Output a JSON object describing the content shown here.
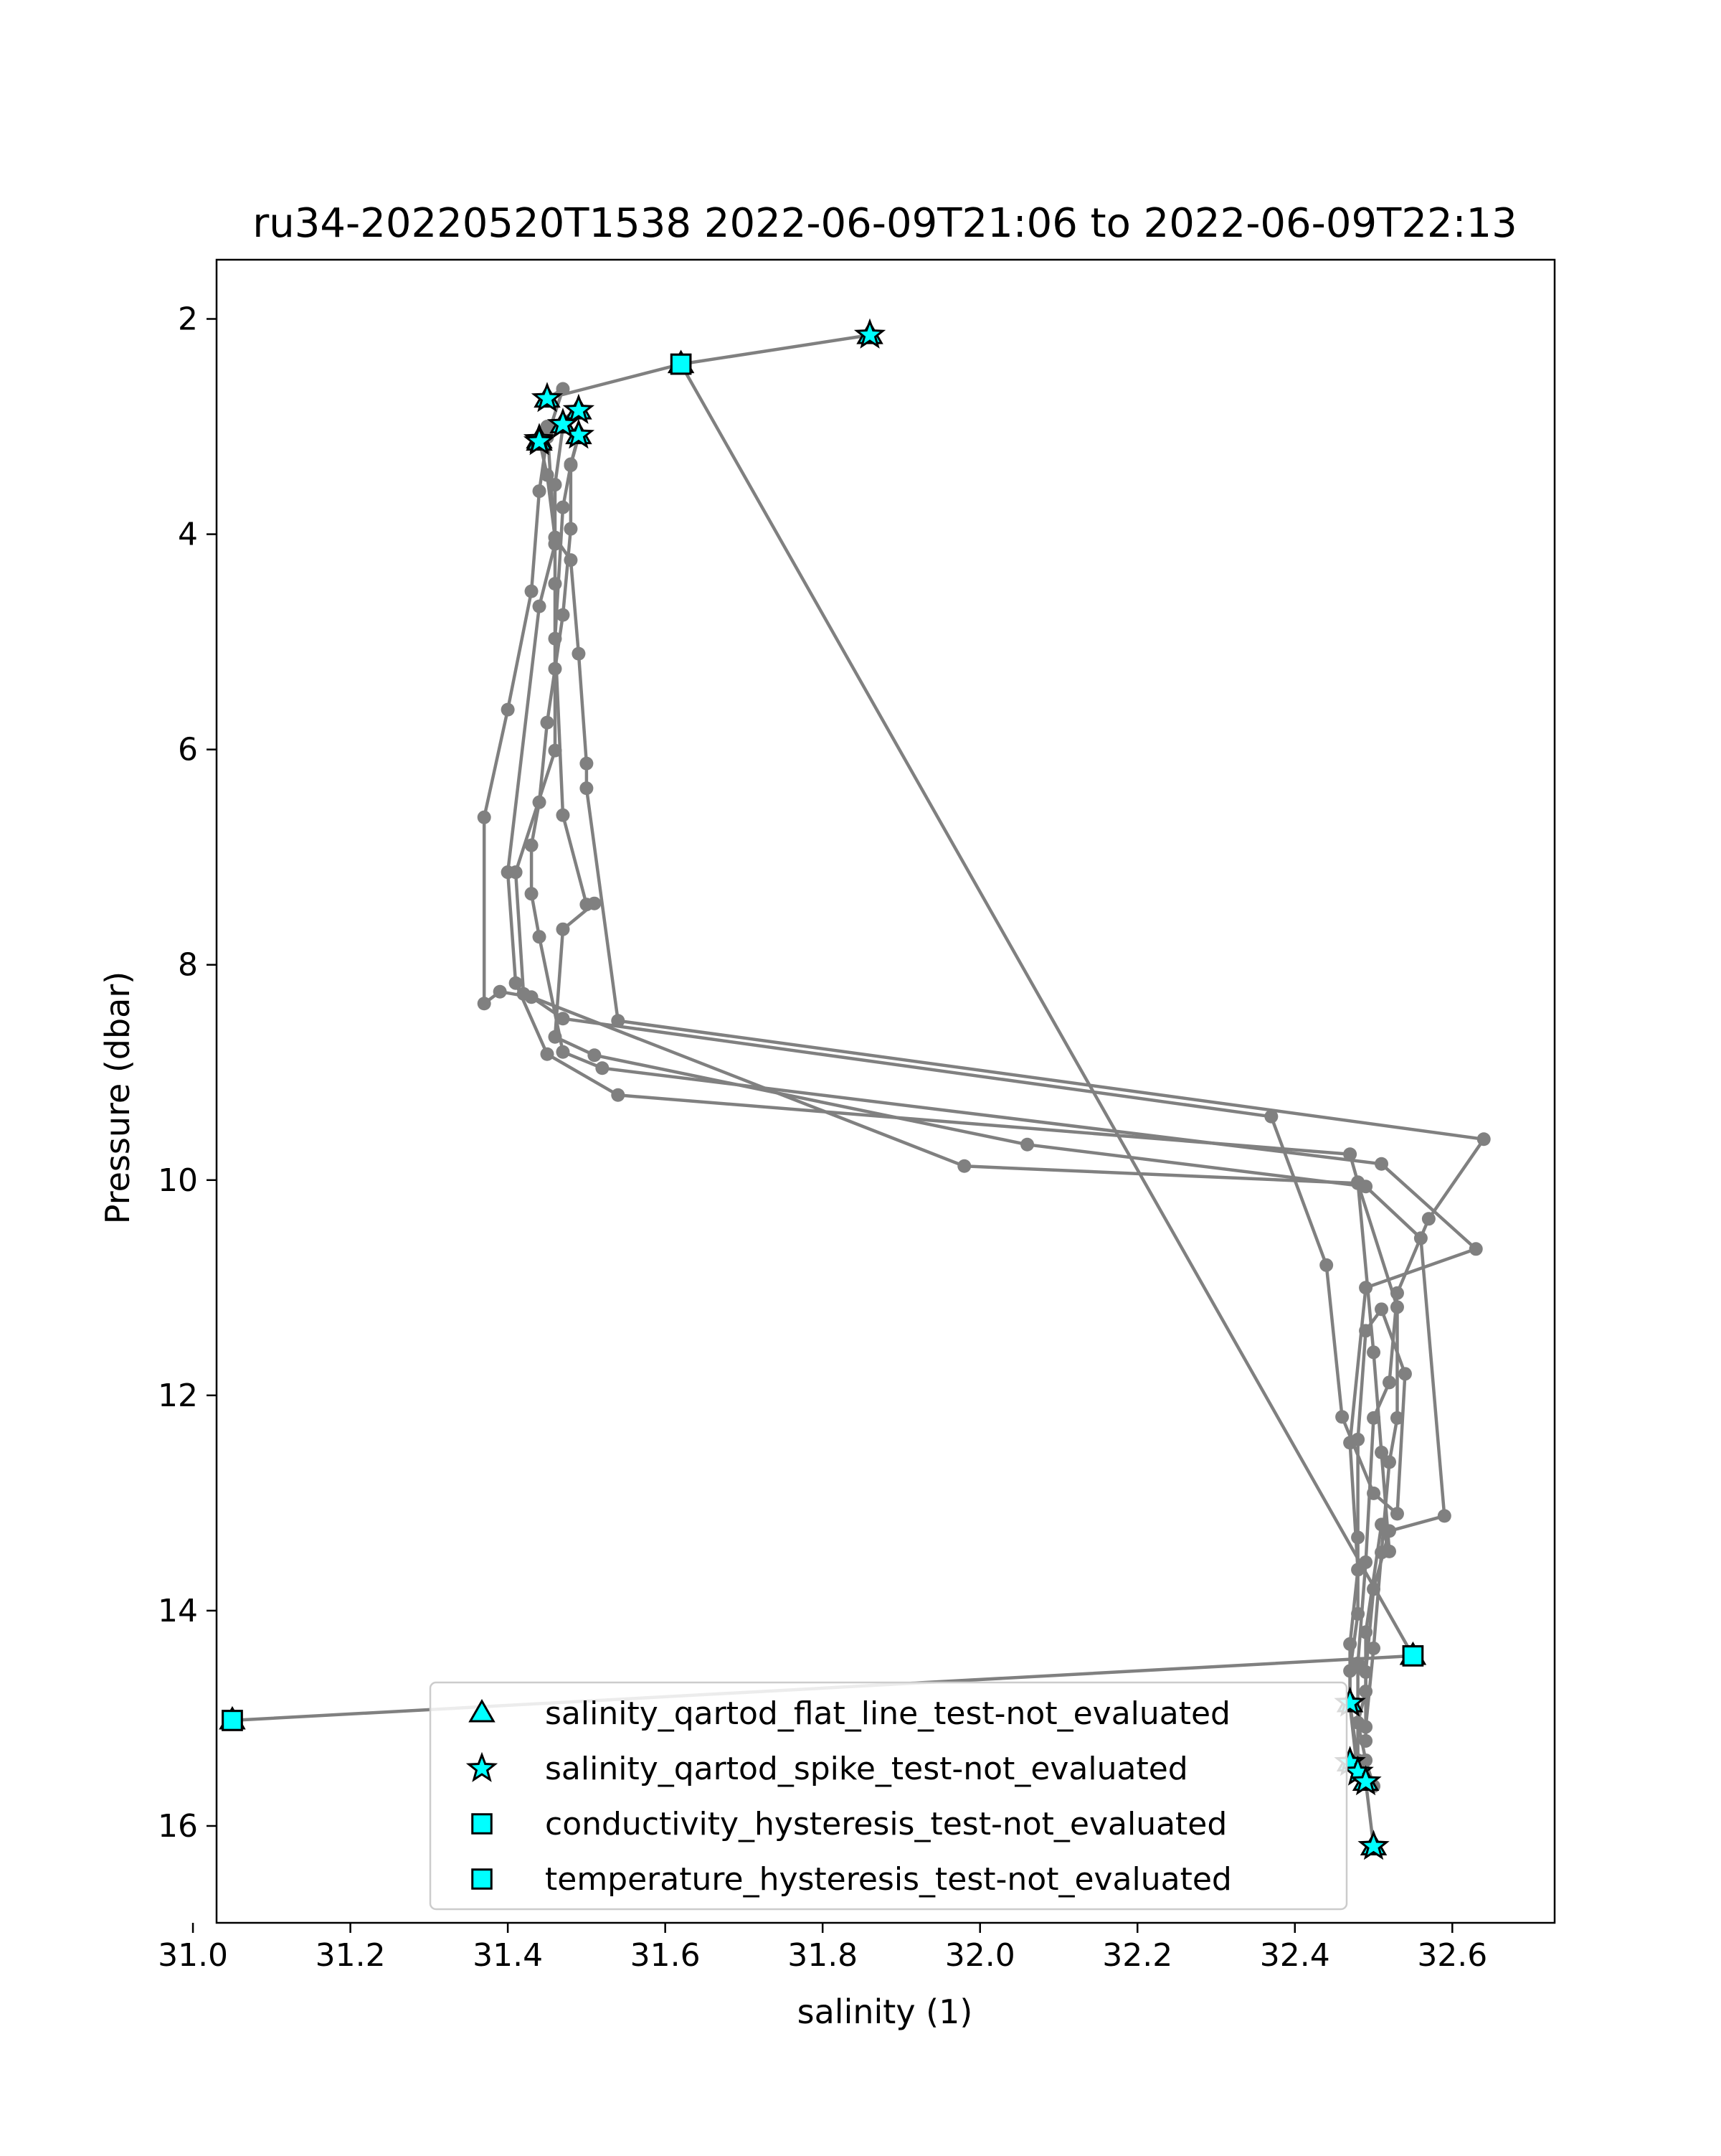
{
  "chart_data": {
    "type": "scatter",
    "title": "ru34-20220520T1538 2022-06-09T21:06 to 2022-06-09T22:13",
    "xlabel": "salinity (1)",
    "ylabel": "Pressure (dbar)",
    "xlim": [
      31.03,
      32.73
    ],
    "ylim": [
      16.9,
      1.45
    ],
    "y_inverted": true,
    "x_ticks": [
      "31.0",
      "31.2",
      "31.4",
      "31.6",
      "31.8",
      "32.0",
      "32.2",
      "32.4",
      "32.6"
    ],
    "y_ticks": [
      "2",
      "4",
      "6",
      "8",
      "10",
      "12",
      "14",
      "16"
    ],
    "grid": false,
    "legend_position": "lower-center",
    "colors": {
      "line": "#808080",
      "flag_marker": "#00ffff",
      "marker_edge": "#000000"
    },
    "series": [
      {
        "name": "",
        "style": "line-with-dots",
        "color": "#808080",
        "x": [
          31.86,
          31.62,
          32.55,
          31.05
        ],
        "y": [
          2.15,
          2.42,
          14.42,
          15.02
        ]
      },
      {
        "name": "",
        "style": "line-with-dots",
        "color": "#808080",
        "x": [
          31.62,
          31.45,
          31.47,
          31.45,
          31.44,
          31.43,
          31.4,
          31.37,
          31.37,
          31.39,
          31.43,
          31.47,
          32.37,
          32.44,
          32.46,
          32.5,
          32.53,
          32.54,
          32.51,
          32.49,
          32.48,
          32.48,
          32.48,
          32.47,
          32.47,
          32.48,
          32.49,
          32.5
        ],
        "y": [
          2.42,
          2.74,
          2.65,
          3.1,
          3.6,
          4.53,
          5.63,
          6.63,
          8.36,
          8.25,
          8.3,
          8.5,
          9.41,
          10.79,
          12.2,
          12.91,
          13.1,
          11.8,
          11.2,
          11.4,
          12.41,
          13.32,
          14.03,
          14.56,
          14.86,
          15.41,
          15.59,
          16.19
        ]
      },
      {
        "name": "",
        "style": "line-with-dots",
        "color": "#808080",
        "x": [
          31.49,
          31.45,
          31.46,
          31.44,
          31.4,
          31.41,
          31.45,
          31.54,
          32.47,
          32.48,
          32.5,
          32.51,
          32.52,
          32.51,
          32.49,
          32.49,
          32.48,
          32.49,
          32.5
        ],
        "y": [
          2.85,
          3.0,
          4.09,
          4.67,
          7.14,
          8.17,
          8.83,
          9.21,
          9.76,
          10.02,
          11.6,
          12.53,
          13.45,
          13.2,
          14.2,
          14.75,
          15.04,
          15.39,
          15.63
        ]
      },
      {
        "name": "",
        "style": "line-with-dots",
        "color": "#808080",
        "x": [
          31.49,
          31.48,
          31.48,
          31.47,
          31.46,
          31.45,
          31.44,
          31.43,
          31.43,
          31.44,
          31.47,
          31.52,
          32.51,
          32.63,
          32.49,
          32.47,
          32.48,
          32.47,
          32.47,
          32.48
        ],
        "y": [
          3.08,
          3.35,
          3.95,
          4.75,
          5.25,
          5.75,
          6.49,
          6.89,
          7.34,
          7.74,
          8.81,
          8.96,
          9.85,
          10.64,
          11.0,
          12.44,
          13.62,
          14.31,
          14.88,
          15.53
        ]
      },
      {
        "name": "",
        "style": "line-with-dots",
        "color": "#808080",
        "x": [
          31.44,
          31.45,
          31.46,
          31.48,
          31.49,
          31.5,
          31.5,
          31.54,
          32.64,
          32.57,
          32.53,
          32.52,
          32.5,
          32.49,
          32.48,
          32.48
        ],
        "y": [
          3.12,
          3.45,
          4.03,
          4.24,
          5.11,
          6.13,
          6.36,
          8.52,
          9.62,
          10.36,
          11.05,
          11.88,
          12.21,
          13.55,
          14.49,
          15.39
        ]
      },
      {
        "name": "",
        "style": "line-with-dots",
        "color": "#808080",
        "x": [
          31.49,
          31.48,
          31.47,
          31.46,
          31.47,
          31.5,
          31.51,
          31.47,
          31.46,
          31.51,
          32.06,
          32.49,
          32.56,
          32.59,
          32.52,
          32.5,
          32.49,
          32.49
        ],
        "y": [
          3.09,
          3.36,
          3.75,
          4.97,
          6.61,
          7.44,
          7.43,
          7.67,
          8.67,
          8.84,
          9.67,
          10.06,
          10.54,
          13.12,
          13.26,
          13.8,
          14.57,
          15.21
        ]
      },
      {
        "name": "",
        "style": "line-with-dots",
        "color": "#808080",
        "x": [
          31.47,
          31.46,
          31.46,
          31.46,
          31.41,
          31.42,
          31.98,
          32.48,
          32.53,
          32.53,
          32.52,
          32.51,
          32.5,
          32.49
        ],
        "y": [
          3.0,
          3.54,
          4.46,
          6.01,
          7.14,
          8.27,
          9.87,
          10.03,
          11.18,
          12.21,
          12.62,
          13.46,
          14.35,
          15.08
        ]
      },
      {
        "name": "salinity_qartod_flat_line_test-not_evaluated",
        "marker": "triangle",
        "color": "#00ffff",
        "x": [
          31.86,
          31.62,
          31.45,
          31.47,
          31.49,
          31.49,
          31.44,
          31.44,
          32.55,
          31.05,
          32.47,
          32.47,
          32.49,
          32.5
        ],
        "y": [
          2.15,
          2.42,
          2.74,
          2.98,
          2.85,
          3.08,
          3.12,
          3.14,
          14.42,
          15.02,
          14.86,
          15.41,
          15.59,
          16.19
        ]
      },
      {
        "name": "salinity_qartod_spike_test-not_evaluated",
        "marker": "star",
        "color": "#00ffff",
        "x": [
          31.86,
          31.45,
          31.49,
          31.49,
          31.47,
          31.44,
          31.44,
          32.47,
          32.47,
          32.48,
          32.49,
          32.5
        ],
        "y": [
          2.15,
          2.74,
          2.85,
          3.08,
          2.98,
          3.12,
          3.14,
          14.86,
          15.41,
          15.5,
          15.59,
          16.19
        ]
      },
      {
        "name": "conductivity_hysteresis_test-not_evaluated",
        "marker": "square",
        "color": "#00ffff",
        "x": [
          31.62,
          32.55,
          31.05
        ],
        "y": [
          2.42,
          14.42,
          15.02
        ]
      },
      {
        "name": "temperature_hysteresis_test-not_evaluated",
        "marker": "square",
        "color": "#00ffff",
        "x": [
          31.62,
          32.55,
          31.05
        ],
        "y": [
          2.42,
          14.42,
          15.02
        ]
      }
    ]
  }
}
